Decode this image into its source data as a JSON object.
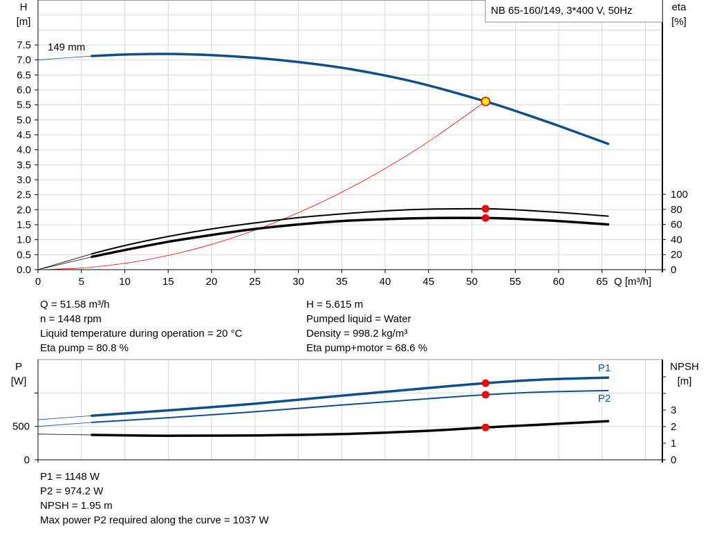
{
  "chart_data": [
    {
      "type": "line",
      "title": "NB 65-160/149, 3*400 V, 50Hz",
      "xlabel": "Q [m³/h]",
      "ylabel": "H [m]",
      "y2label": "eta [%]",
      "xlim": [
        0,
        71
      ],
      "ylim": [
        0,
        9
      ],
      "y2lim": [
        0,
        100
      ],
      "grid": true,
      "xticks": [
        "0",
        "5",
        "10",
        "15",
        "20",
        "25",
        "30",
        "35",
        "40",
        "45",
        "50",
        "55",
        "60",
        "65"
      ],
      "yticks": [
        "0.0",
        "0.5",
        "1.0",
        "1.5",
        "2.0",
        "2.5",
        "3.0",
        "3.5",
        "4.0",
        "4.5",
        "5.0",
        "5.5",
        "6.0",
        "6.5",
        "7.0",
        "7.5"
      ],
      "y2ticks": [
        "0",
        "20",
        "40",
        "60",
        "80",
        "100"
      ],
      "curve_label": "149 mm",
      "series": [
        {
          "key": "H",
          "axis": "left",
          "color": "#0d4f8b",
          "points": [
            [
              0,
              7.0
            ],
            [
              6.2,
              7.13
            ],
            [
              10,
              7.18
            ],
            [
              15,
              7.2
            ],
            [
              20,
              7.16
            ],
            [
              25,
              7.07
            ],
            [
              30,
              6.93
            ],
            [
              35,
              6.74
            ],
            [
              40,
              6.48
            ],
            [
              45,
              6.15
            ],
            [
              51.58,
              5.615
            ],
            [
              55,
              5.3
            ],
            [
              60,
              4.8
            ],
            [
              65.7,
              4.2
            ]
          ]
        },
        {
          "key": "eta_pump",
          "axis": "right",
          "color": "#000000",
          "points": [
            [
              0,
              0
            ],
            [
              6.2,
              21
            ],
            [
              10,
              32
            ],
            [
              15,
              44
            ],
            [
              20,
              54
            ],
            [
              25,
              62
            ],
            [
              30,
              69
            ],
            [
              35,
              74
            ],
            [
              40,
              78
            ],
            [
              45,
              80.3
            ],
            [
              51.58,
              80.8
            ],
            [
              55,
              79.5
            ],
            [
              60,
              76
            ],
            [
              65.7,
              71
            ]
          ]
        },
        {
          "key": "eta_pump_motor",
          "axis": "right",
          "color": "#000000",
          "points": [
            [
              0,
              0
            ],
            [
              6.2,
              17
            ],
            [
              10,
              26
            ],
            [
              15,
              37
            ],
            [
              20,
              46
            ],
            [
              25,
              54
            ],
            [
              30,
              60
            ],
            [
              35,
              64.5
            ],
            [
              40,
              67
            ],
            [
              45,
              68.5
            ],
            [
              51.58,
              68.6
            ],
            [
              55,
              67.5
            ],
            [
              60,
              64.5
            ],
            [
              65.7,
              60
            ]
          ]
        },
        {
          "key": "system",
          "axis": "left",
          "color": "#ff0000",
          "points": [
            [
              0,
              0
            ],
            [
              5,
              0.053
            ],
            [
              10,
              0.211
            ],
            [
              15,
              0.475
            ],
            [
              20,
              0.844
            ],
            [
              25,
              1.319
            ],
            [
              30,
              1.9
            ],
            [
              35,
              2.585
            ],
            [
              40,
              3.377
            ],
            [
              45,
              4.274
            ],
            [
              51.58,
              5.615
            ]
          ]
        }
      ],
      "duty_point": {
        "Q": 51.58,
        "H": 5.615,
        "eta_pump": 80.8,
        "eta_pump_motor": 68.6
      }
    },
    {
      "type": "line",
      "ylabel": "P [W]",
      "y2label": "NPSH [m]",
      "xlim": [
        0,
        71
      ],
      "ylim": [
        0,
        1500
      ],
      "y2lim": [
        0,
        6
      ],
      "grid": true,
      "yticks": [
        "0",
        "500"
      ],
      "y2ticks": [
        "0",
        "1",
        "2",
        "3"
      ],
      "series": [
        {
          "key": "P1",
          "name": "P1",
          "axis": "left",
          "color": "#0d4f8b",
          "points": [
            [
              0,
              600
            ],
            [
              6.2,
              660
            ],
            [
              15,
              740
            ],
            [
              25,
              840
            ],
            [
              35,
              960
            ],
            [
              45,
              1075
            ],
            [
              51.58,
              1148
            ],
            [
              58,
              1200
            ],
            [
              65.7,
              1230
            ]
          ]
        },
        {
          "key": "P2",
          "name": "P2",
          "axis": "left",
          "color": "#0d4f8b",
          "points": [
            [
              0,
              500
            ],
            [
              6.2,
              560
            ],
            [
              15,
              630
            ],
            [
              25,
              720
            ],
            [
              35,
              820
            ],
            [
              45,
              915
            ],
            [
              51.58,
              974.2
            ],
            [
              58,
              1015
            ],
            [
              65.7,
              1037
            ]
          ]
        },
        {
          "key": "NPSH",
          "axis": "right",
          "color": "#000000",
          "points": [
            [
              0,
              1.55
            ],
            [
              6.2,
              1.5
            ],
            [
              15,
              1.45
            ],
            [
              25,
              1.47
            ],
            [
              35,
              1.55
            ],
            [
              45,
              1.75
            ],
            [
              51.58,
              1.95
            ],
            [
              58,
              2.12
            ],
            [
              65.7,
              2.33
            ]
          ]
        }
      ],
      "duty_point": {
        "Q": 51.58,
        "P1": 1148,
        "P2": 974.2,
        "NPSH": 1.95
      }
    }
  ],
  "info_top": {
    "left": [
      "Q = 51.58 m³/h",
      "n = 1448 rpm",
      "Liquid temperature during operation = 20 °C",
      "Eta pump = 80.8 %"
    ],
    "right": [
      "H = 5.615 m",
      "Pumped liquid = Water",
      "Density = 998.2 kg/m³",
      "Eta pump+motor = 68.6 %"
    ]
  },
  "info_bottom": [
    "P1 = 1148 W",
    "P2 = 974.2 W",
    "NPSH = 1.95 m",
    "Max power P2 required along the curve = 1037 W"
  ],
  "labels": {
    "H": "H",
    "H_unit": "[m]",
    "eta": "eta",
    "eta_unit": "[%]",
    "P": "P",
    "P_unit": "[W]",
    "NPSH": "NPSH",
    "NPSH_unit": "[m]",
    "xaxis": "Q [m³/h]"
  }
}
